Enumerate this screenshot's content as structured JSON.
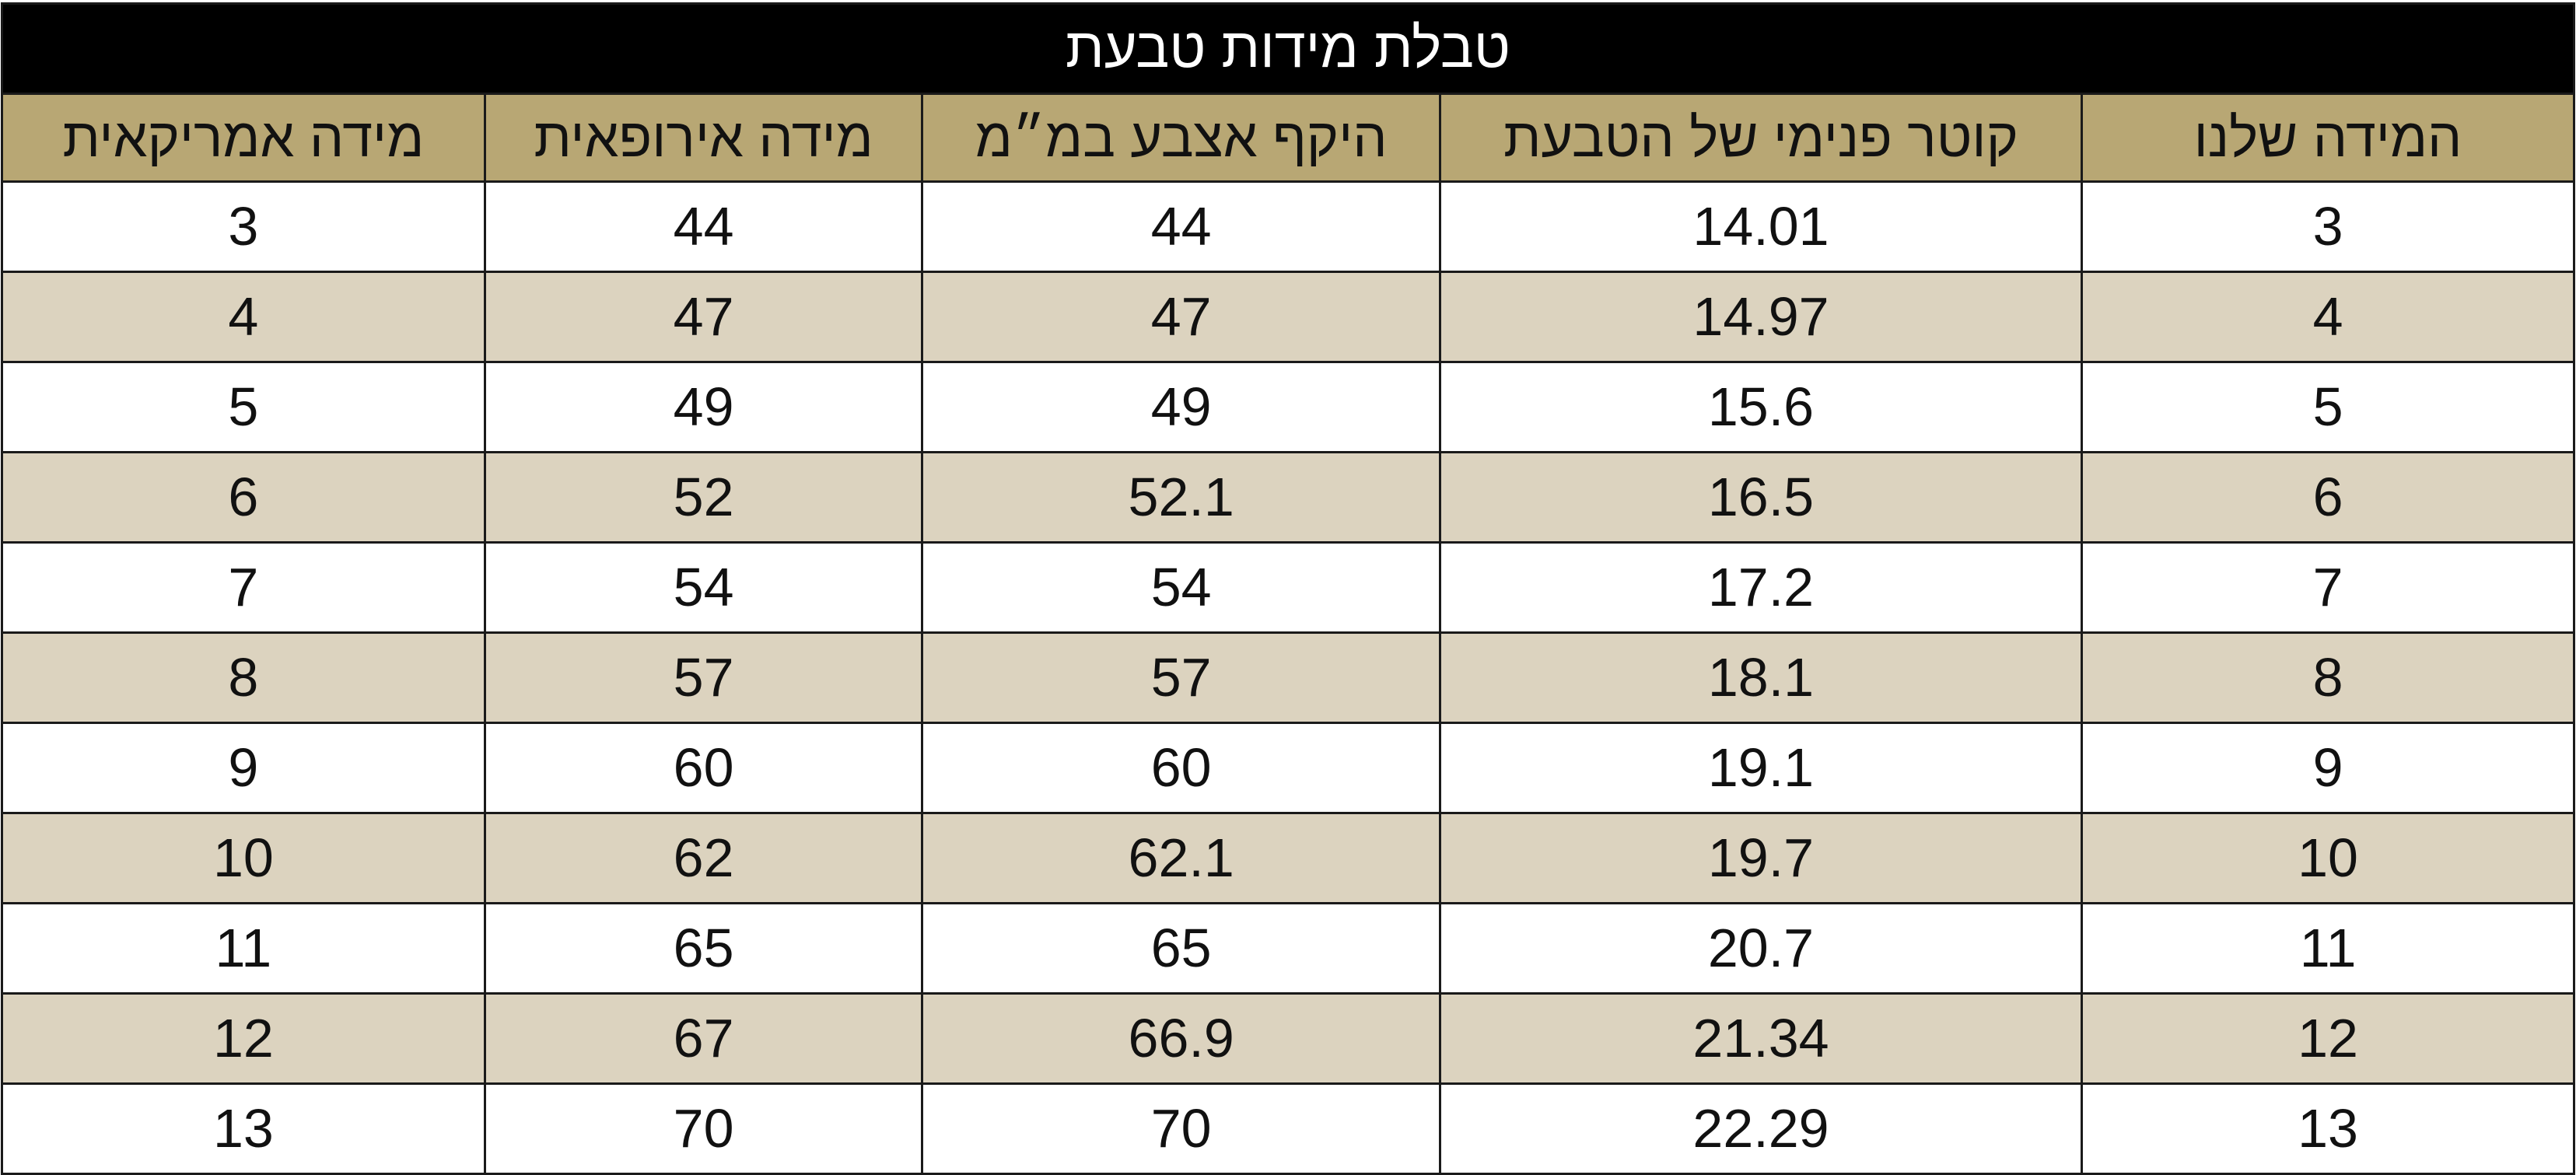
{
  "title": "טבלת מידות טבעת",
  "colors": {
    "title_bg": "#000000",
    "title_text": "#ffffff",
    "header_bg": "#b8a774",
    "row_alt_bg": "#dcd3bf",
    "row_bg": "#ffffff",
    "border": "#1a1a1a"
  },
  "columns": [
    "המידה שלנו",
    "קוטר פנימי של הטבעת",
    "היקף אצבע במ״מ",
    "מידה אירופאית",
    "מידה אמריקאית"
  ],
  "rows": [
    [
      "3",
      "14.01",
      "44",
      "44",
      "3"
    ],
    [
      "4",
      "14.97",
      "47",
      "47",
      "4"
    ],
    [
      "5",
      "15.6",
      "49",
      "49",
      "5"
    ],
    [
      "6",
      "16.5",
      "52.1",
      "52",
      "6"
    ],
    [
      "7",
      "17.2",
      "54",
      "54",
      "7"
    ],
    [
      "8",
      "18.1",
      "57",
      "57",
      "8"
    ],
    [
      "9",
      "19.1",
      "60",
      "60",
      "9"
    ],
    [
      "10",
      "19.7",
      "62.1",
      "62",
      "10"
    ],
    [
      "11",
      "20.7",
      "65",
      "65",
      "11"
    ],
    [
      "12",
      "21.34",
      "66.9",
      "67",
      "12"
    ],
    [
      "13",
      "22.29",
      "70",
      "70",
      "13"
    ]
  ]
}
